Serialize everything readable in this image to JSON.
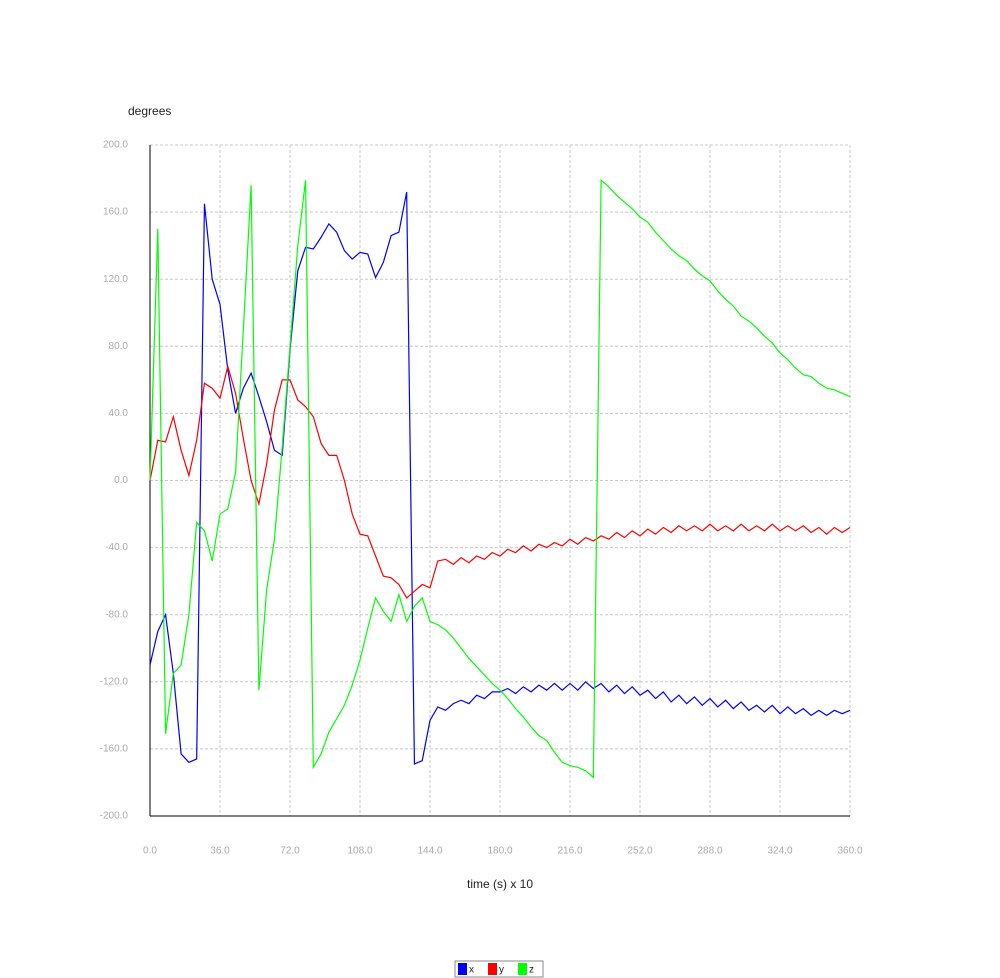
{
  "chart_data": {
    "type": "line",
    "ylabel": "degrees",
    "xlabel": "time (s) x 10",
    "x": [
      0,
      4,
      8,
      12,
      16,
      20,
      24,
      28,
      32,
      36,
      40,
      44,
      48,
      52,
      56,
      60,
      64,
      68,
      72,
      76,
      80,
      84,
      88,
      92,
      96,
      100,
      104,
      108,
      112,
      116,
      120,
      124,
      128,
      132,
      136,
      140,
      144,
      148,
      152,
      156,
      160,
      164,
      168,
      172,
      176,
      180,
      184,
      188,
      192,
      196,
      200,
      204,
      208,
      212,
      216,
      220,
      224,
      228,
      232,
      236,
      240,
      244,
      248,
      252,
      256,
      260,
      264,
      268,
      272,
      276,
      280,
      284,
      288,
      292,
      296,
      300,
      304,
      308,
      312,
      316,
      320,
      324,
      328,
      332,
      336,
      340,
      344,
      348,
      352,
      356,
      360
    ],
    "series": [
      {
        "name": "x",
        "color": "#0000ff",
        "values": [
          -110,
          -90,
          -80,
          -115,
          -163,
          -168,
          -166,
          165,
          120,
          105,
          66,
          40,
          55,
          64,
          50,
          35,
          18,
          15,
          78,
          125,
          139,
          138,
          145,
          153,
          148,
          137,
          132,
          136,
          135,
          121,
          130,
          146,
          148,
          172,
          -169,
          -167,
          -143,
          -135,
          -137,
          -133,
          -131,
          -133,
          -128,
          -130,
          -126,
          -126,
          -124,
          -127,
          -123,
          -126,
          -122,
          -125,
          -121,
          -125,
          -121,
          -125,
          -120,
          -124,
          -121,
          -126,
          -122,
          -127,
          -123,
          -128,
          -125,
          -130,
          -126,
          -132,
          -128,
          -133,
          -129,
          -134,
          -130,
          -135,
          -131,
          -136,
          -132,
          -137,
          -134,
          -138,
          -134,
          -139,
          -135,
          -139,
          -136,
          -140,
          -137,
          -140,
          -137,
          -139,
          -137
        ]
      },
      {
        "name": "y",
        "color": "#ff0000",
        "values": [
          0,
          24,
          23,
          38,
          18,
          3,
          24,
          58,
          55,
          49,
          68,
          52,
          25,
          0,
          -14,
          10,
          42,
          60,
          60,
          48,
          44,
          38,
          22,
          15,
          15,
          0,
          -20,
          -32,
          -33,
          -45,
          -57,
          -58,
          -62,
          -70,
          -66,
          -62,
          -64,
          -48,
          -47,
          -50,
          -46,
          -49,
          -45,
          -47,
          -43,
          -45,
          -41,
          -43,
          -39,
          -42,
          -38,
          -40,
          -37,
          -39,
          -35,
          -38,
          -34,
          -36,
          -33,
          -35,
          -31,
          -34,
          -30,
          -33,
          -29,
          -32,
          -28,
          -31,
          -27,
          -30,
          -27,
          -30,
          -26,
          -30,
          -27,
          -30,
          -26,
          -30,
          -27,
          -30,
          -26,
          -30,
          -27,
          -30,
          -27,
          -31,
          -28,
          -32,
          -28,
          -31,
          -28
        ]
      },
      {
        "name": "z",
        "color": "#00ff00",
        "values": [
          0,
          150,
          -151,
          -115,
          -110,
          -80,
          -25,
          -30,
          -48,
          -20,
          -17,
          5,
          90,
          176,
          -125,
          -65,
          -35,
          20,
          80,
          140,
          179,
          -171,
          -163,
          -150,
          -142,
          -134,
          -122,
          -107,
          -88,
          -70,
          -78,
          -84,
          -68,
          -84,
          -75,
          -70,
          -84,
          -86,
          -89,
          -94,
          -100,
          -106,
          -111,
          -116,
          -121,
          -125,
          -130,
          -136,
          -141,
          -147,
          -152,
          -155,
          -162,
          -168,
          -170,
          -171,
          -173,
          -177,
          179,
          175,
          170,
          166,
          162,
          157,
          154,
          148,
          143,
          138,
          134,
          131,
          126,
          122,
          119,
          113,
          108,
          104,
          98,
          95,
          91,
          86,
          82,
          76,
          72,
          67,
          63,
          62,
          58,
          55,
          54,
          52,
          50
        ]
      }
    ],
    "xlim": [
      0,
      360
    ],
    "xticks": [
      {
        "value": 0,
        "label": "0.0"
      },
      {
        "value": 36,
        "label": "36.0"
      },
      {
        "value": 72,
        "label": "72.0"
      },
      {
        "value": 108,
        "label": "108.0"
      },
      {
        "value": 144,
        "label": "144.0"
      },
      {
        "value": 180,
        "label": "180.0"
      },
      {
        "value": 216,
        "label": "216.0"
      },
      {
        "value": 252,
        "label": "252.0"
      },
      {
        "value": 288,
        "label": "288.0"
      },
      {
        "value": 324,
        "label": "324.0"
      },
      {
        "value": 360,
        "label": "360.0"
      }
    ],
    "ylim": [
      -200,
      200
    ],
    "yticks": [
      {
        "value": -200,
        "label": "-200.0"
      },
      {
        "value": -160,
        "label": "-160.0"
      },
      {
        "value": -120,
        "label": "-120.0"
      },
      {
        "value": -80,
        "label": "-80.0"
      },
      {
        "value": -40,
        "label": "-40.0"
      },
      {
        "value": 0,
        "label": "0.0"
      },
      {
        "value": 40,
        "label": "40.0"
      },
      {
        "value": 80,
        "label": "80.0"
      },
      {
        "value": 120,
        "label": "120.0"
      },
      {
        "value": 160,
        "label": "160.0"
      },
      {
        "value": 200,
        "label": "200.0"
      }
    ],
    "grid": true
  }
}
